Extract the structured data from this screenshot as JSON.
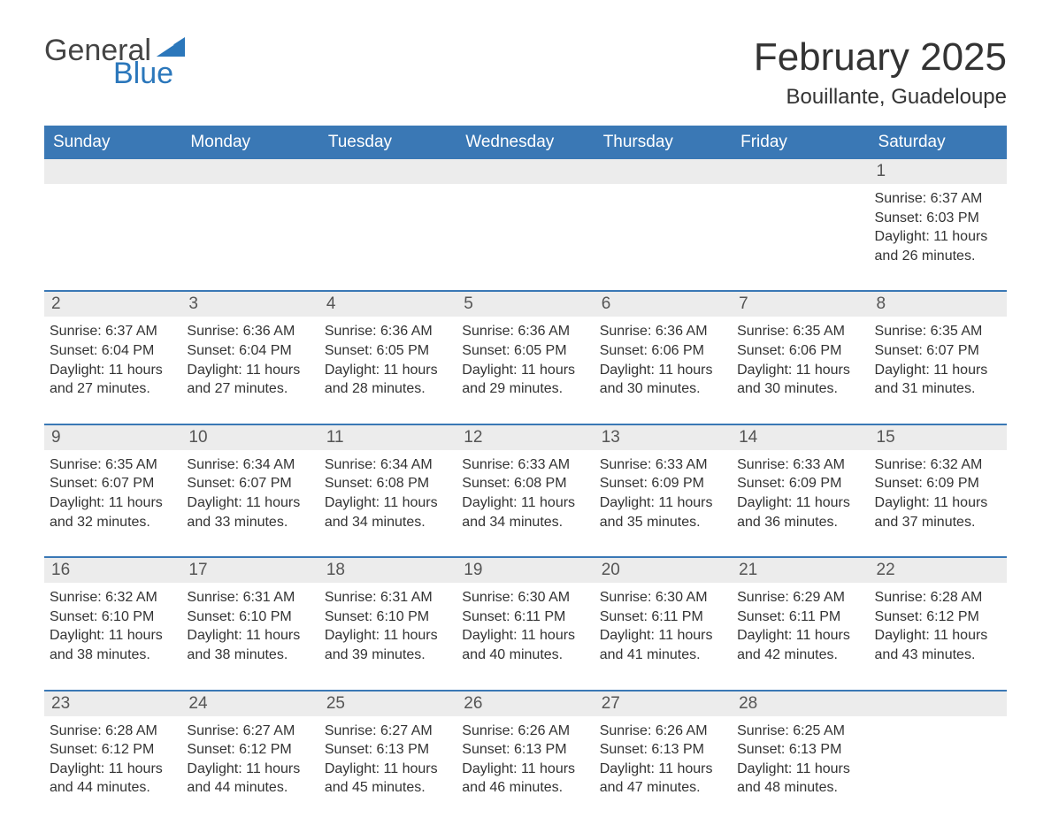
{
  "logo": {
    "text1": "General",
    "text2": "Blue"
  },
  "title": "February 2025",
  "location": "Bouillante, Guadeloupe",
  "colors": {
    "header_bg": "#3a78b5",
    "header_text": "#ffffff",
    "daynum_bg": "#ececec",
    "daynum_text": "#555555",
    "body_text": "#333333",
    "logo_accent": "#2b77bb",
    "rule": "#3a78b5",
    "page_bg": "#ffffff"
  },
  "typography": {
    "title_fontsize": 44,
    "location_fontsize": 24,
    "weekday_fontsize": 19,
    "daynum_fontsize": 19,
    "body_fontsize": 16,
    "font_family": "Arial"
  },
  "weekdays": [
    "Sunday",
    "Monday",
    "Tuesday",
    "Wednesday",
    "Thursday",
    "Friday",
    "Saturday"
  ],
  "labels": {
    "sunrise": "Sunrise:",
    "sunset": "Sunset:",
    "daylight": "Daylight:"
  },
  "weeks": [
    [
      null,
      null,
      null,
      null,
      null,
      null,
      {
        "n": "1",
        "sunrise": "6:37 AM",
        "sunset": "6:03 PM",
        "daylight": "11 hours and 26 minutes."
      }
    ],
    [
      {
        "n": "2",
        "sunrise": "6:37 AM",
        "sunset": "6:04 PM",
        "daylight": "11 hours and 27 minutes."
      },
      {
        "n": "3",
        "sunrise": "6:36 AM",
        "sunset": "6:04 PM",
        "daylight": "11 hours and 27 minutes."
      },
      {
        "n": "4",
        "sunrise": "6:36 AM",
        "sunset": "6:05 PM",
        "daylight": "11 hours and 28 minutes."
      },
      {
        "n": "5",
        "sunrise": "6:36 AM",
        "sunset": "6:05 PM",
        "daylight": "11 hours and 29 minutes."
      },
      {
        "n": "6",
        "sunrise": "6:36 AM",
        "sunset": "6:06 PM",
        "daylight": "11 hours and 30 minutes."
      },
      {
        "n": "7",
        "sunrise": "6:35 AM",
        "sunset": "6:06 PM",
        "daylight": "11 hours and 30 minutes."
      },
      {
        "n": "8",
        "sunrise": "6:35 AM",
        "sunset": "6:07 PM",
        "daylight": "11 hours and 31 minutes."
      }
    ],
    [
      {
        "n": "9",
        "sunrise": "6:35 AM",
        "sunset": "6:07 PM",
        "daylight": "11 hours and 32 minutes."
      },
      {
        "n": "10",
        "sunrise": "6:34 AM",
        "sunset": "6:07 PM",
        "daylight": "11 hours and 33 minutes."
      },
      {
        "n": "11",
        "sunrise": "6:34 AM",
        "sunset": "6:08 PM",
        "daylight": "11 hours and 34 minutes."
      },
      {
        "n": "12",
        "sunrise": "6:33 AM",
        "sunset": "6:08 PM",
        "daylight": "11 hours and 34 minutes."
      },
      {
        "n": "13",
        "sunrise": "6:33 AM",
        "sunset": "6:09 PM",
        "daylight": "11 hours and 35 minutes."
      },
      {
        "n": "14",
        "sunrise": "6:33 AM",
        "sunset": "6:09 PM",
        "daylight": "11 hours and 36 minutes."
      },
      {
        "n": "15",
        "sunrise": "6:32 AM",
        "sunset": "6:09 PM",
        "daylight": "11 hours and 37 minutes."
      }
    ],
    [
      {
        "n": "16",
        "sunrise": "6:32 AM",
        "sunset": "6:10 PM",
        "daylight": "11 hours and 38 minutes."
      },
      {
        "n": "17",
        "sunrise": "6:31 AM",
        "sunset": "6:10 PM",
        "daylight": "11 hours and 38 minutes."
      },
      {
        "n": "18",
        "sunrise": "6:31 AM",
        "sunset": "6:10 PM",
        "daylight": "11 hours and 39 minutes."
      },
      {
        "n": "19",
        "sunrise": "6:30 AM",
        "sunset": "6:11 PM",
        "daylight": "11 hours and 40 minutes."
      },
      {
        "n": "20",
        "sunrise": "6:30 AM",
        "sunset": "6:11 PM",
        "daylight": "11 hours and 41 minutes."
      },
      {
        "n": "21",
        "sunrise": "6:29 AM",
        "sunset": "6:11 PM",
        "daylight": "11 hours and 42 minutes."
      },
      {
        "n": "22",
        "sunrise": "6:28 AM",
        "sunset": "6:12 PM",
        "daylight": "11 hours and 43 minutes."
      }
    ],
    [
      {
        "n": "23",
        "sunrise": "6:28 AM",
        "sunset": "6:12 PM",
        "daylight": "11 hours and 44 minutes."
      },
      {
        "n": "24",
        "sunrise": "6:27 AM",
        "sunset": "6:12 PM",
        "daylight": "11 hours and 44 minutes."
      },
      {
        "n": "25",
        "sunrise": "6:27 AM",
        "sunset": "6:13 PM",
        "daylight": "11 hours and 45 minutes."
      },
      {
        "n": "26",
        "sunrise": "6:26 AM",
        "sunset": "6:13 PM",
        "daylight": "11 hours and 46 minutes."
      },
      {
        "n": "27",
        "sunrise": "6:26 AM",
        "sunset": "6:13 PM",
        "daylight": "11 hours and 47 minutes."
      },
      {
        "n": "28",
        "sunrise": "6:25 AM",
        "sunset": "6:13 PM",
        "daylight": "11 hours and 48 minutes."
      },
      null
    ]
  ]
}
